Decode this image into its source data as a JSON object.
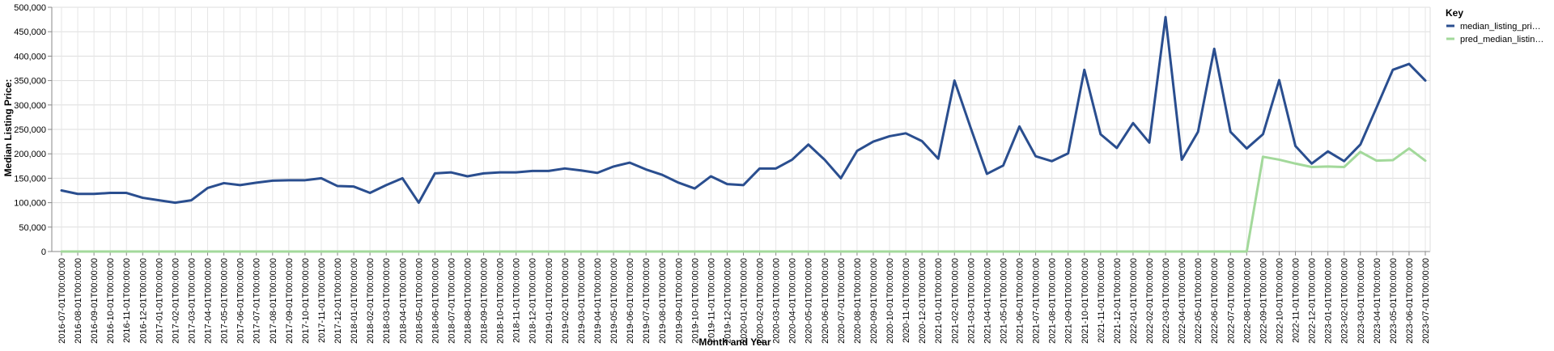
{
  "chart_data": {
    "type": "line",
    "xlabel": "Month and Year",
    "ylabel": "Median Listing Price:",
    "ylim": [
      0,
      500000
    ],
    "yticks": [
      "0",
      "50,000",
      "100,000",
      "150,000",
      "200,000",
      "250,000",
      "300,000",
      "350,000",
      "400,000",
      "450,000",
      "500,000"
    ],
    "grid": true,
    "legend_position": "right",
    "legend_title": "Key",
    "x": [
      "2016-07-01T00:00:00",
      "2016-08-01T00:00:00",
      "2016-09-01T00:00:00",
      "2016-10-01T00:00:00",
      "2016-11-01T00:00:00",
      "2016-12-01T00:00:00",
      "2017-01-01T00:00:00",
      "2017-02-01T00:00:00",
      "2017-03-01T00:00:00",
      "2017-04-01T00:00:00",
      "2017-05-01T00:00:00",
      "2017-06-01T00:00:00",
      "2017-07-01T00:00:00",
      "2017-08-01T00:00:00",
      "2017-09-01T00:00:00",
      "2017-10-01T00:00:00",
      "2017-11-01T00:00:00",
      "2017-12-01T00:00:00",
      "2018-01-01T00:00:00",
      "2018-02-01T00:00:00",
      "2018-03-01T00:00:00",
      "2018-04-01T00:00:00",
      "2018-05-01T00:00:00",
      "2018-06-01T00:00:00",
      "2018-07-01T00:00:00",
      "2018-08-01T00:00:00",
      "2018-09-01T00:00:00",
      "2018-10-01T00:00:00",
      "2018-11-01T00:00:00",
      "2018-12-01T00:00:00",
      "2019-01-01T00:00:00",
      "2019-02-01T00:00:00",
      "2019-03-01T00:00:00",
      "2019-04-01T00:00:00",
      "2019-05-01T00:00:00",
      "2019-06-01T00:00:00",
      "2019-07-01T00:00:00",
      "2019-08-01T00:00:00",
      "2019-09-01T00:00:00",
      "2019-10-01T00:00:00",
      "2019-11-01T00:00:00",
      "2019-12-01T00:00:00",
      "2020-01-01T00:00:00",
      "2020-02-01T00:00:00",
      "2020-03-01T00:00:00",
      "2020-04-01T00:00:00",
      "2020-05-01T00:00:00",
      "2020-06-01T00:00:00",
      "2020-07-01T00:00:00",
      "2020-08-01T00:00:00",
      "2020-09-01T00:00:00",
      "2020-10-01T00:00:00",
      "2020-11-01T00:00:00",
      "2020-12-01T00:00:00",
      "2021-01-01T00:00:00",
      "2021-02-01T00:00:00",
      "2021-03-01T00:00:00",
      "2021-04-01T00:00:00",
      "2021-05-01T00:00:00",
      "2021-06-01T00:00:00",
      "2021-07-01T00:00:00",
      "2021-08-01T00:00:00",
      "2021-09-01T00:00:00",
      "2021-10-01T00:00:00",
      "2021-11-01T00:00:00",
      "2021-12-01T00:00:00",
      "2022-01-01T00:00:00",
      "2022-02-01T00:00:00",
      "2022-03-01T00:00:00",
      "2022-04-01T00:00:00",
      "2022-05-01T00:00:00",
      "2022-06-01T00:00:00",
      "2022-07-01T00:00:00",
      "2022-08-01T00:00:00",
      "2022-09-01T00:00:00",
      "2022-10-01T00:00:00",
      "2022-11-01T00:00:00",
      "2022-12-01T00:00:00",
      "2023-01-01T00:00:00",
      "2023-02-01T00:00:00",
      "2023-03-01T00:00:00",
      "2023-04-01T00:00:00",
      "2023-05-01T00:00:00",
      "2023-06-01T00:00:00",
      "2023-07-01T00:00:00"
    ],
    "series": [
      {
        "name": "median_listing_pri…",
        "color": "#2a4e8f",
        "values": [
          125000,
          118000,
          118000,
          120000,
          120000,
          110000,
          105000,
          100000,
          105000,
          130000,
          140000,
          136000,
          141000,
          145000,
          146000,
          146000,
          150000,
          134000,
          133000,
          120000,
          136000,
          150000,
          100000,
          160000,
          162000,
          154000,
          160000,
          162000,
          162000,
          165000,
          165000,
          170000,
          166000,
          161000,
          174000,
          182000,
          168000,
          157000,
          141000,
          129000,
          154000,
          138000,
          136000,
          170000,
          170000,
          188000,
          219000,
          188000,
          150000,
          206000,
          225000,
          236000,
          242000,
          226000,
          190000,
          350000,
          253000,
          159000,
          176000,
          256000,
          195000,
          185000,
          201000,
          372000,
          240000,
          212000,
          263000,
          223000,
          480000,
          188000,
          245000,
          415000,
          245000,
          211000,
          240000,
          351000,
          216000,
          180000,
          205000,
          185000,
          219000,
          295000,
          372000,
          384000,
          350000
        ]
      },
      {
        "name": "pred_median_listin…",
        "color": "#a3d99b",
        "values": [
          0,
          0,
          0,
          0,
          0,
          0,
          0,
          0,
          0,
          0,
          0,
          0,
          0,
          0,
          0,
          0,
          0,
          0,
          0,
          0,
          0,
          0,
          0,
          0,
          0,
          0,
          0,
          0,
          0,
          0,
          0,
          0,
          0,
          0,
          0,
          0,
          0,
          0,
          0,
          0,
          0,
          0,
          0,
          0,
          0,
          0,
          0,
          0,
          0,
          0,
          0,
          0,
          0,
          0,
          0,
          0,
          0,
          0,
          0,
          0,
          0,
          0,
          0,
          0,
          0,
          0,
          0,
          0,
          0,
          0,
          0,
          0,
          0,
          0,
          194000,
          188000,
          180000,
          173000,
          174000,
          173000,
          204000,
          186000,
          187000,
          211000,
          186000
        ]
      }
    ]
  }
}
